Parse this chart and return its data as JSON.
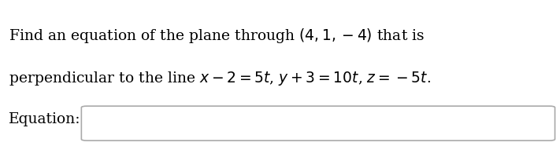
{
  "line1": "Find an equation of the plane through $(4, 1, -4)$ that is",
  "line2": "perpendicular to the line $x - 2 = 5t$, $y + 3 = 10t$, $z = -5t$.",
  "label": "Equation:",
  "bg_color": "#ffffff",
  "text_color": "#000000",
  "font_size": 13.5,
  "label_font_size": 13.5,
  "fig_width": 7.06,
  "fig_height": 1.86,
  "dpi": 100
}
